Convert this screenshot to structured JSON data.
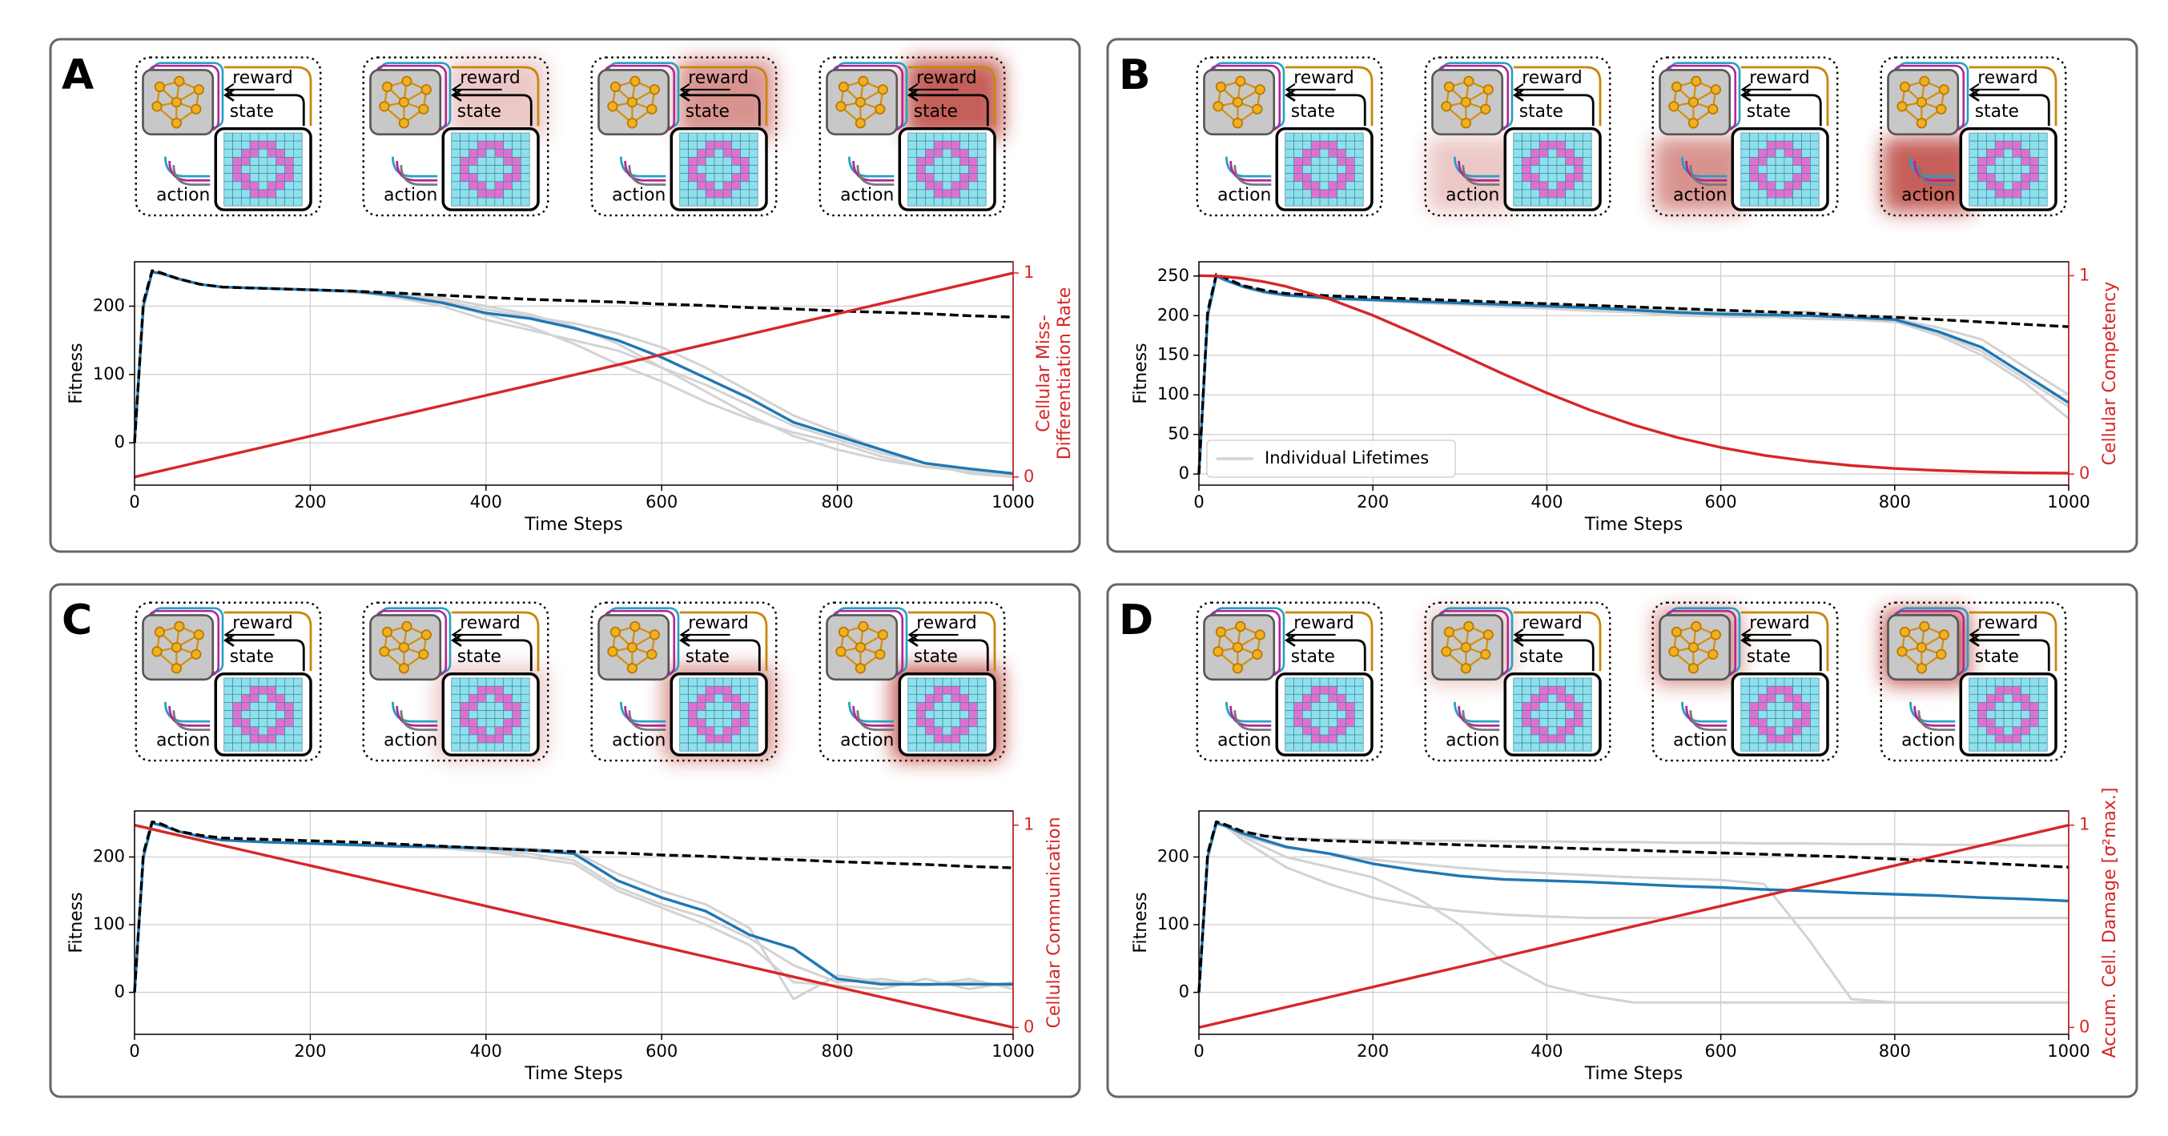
{
  "schematic": {
    "reward": "reward",
    "state": "state",
    "action": "action"
  },
  "chart_data": [
    {
      "type": "line",
      "panel": "A",
      "xlabel": "Time Steps",
      "ylabel": "Fitness",
      "y2label": [
        "Cellular Miss-",
        "Differentiation Rate"
      ],
      "x": [
        0,
        10,
        20,
        30,
        50,
        75,
        100,
        150,
        200,
        250,
        300,
        350,
        400,
        450,
        500,
        550,
        600,
        650,
        700,
        750,
        800,
        850,
        900,
        950,
        1000
      ],
      "xlim": [
        0,
        1000
      ],
      "xticks": [
        0,
        200,
        400,
        600,
        800,
        1000
      ],
      "ylim": [
        -62,
        265
      ],
      "yticks": [
        0,
        100,
        200
      ],
      "y2lim": [
        -0.04,
        1.055
      ],
      "y2ticks": [
        0,
        1
      ],
      "grid": true,
      "series": [
        {
          "color": "#d3d3d3",
          "values": [
            0,
            200,
            250,
            248,
            240,
            232,
            228,
            226,
            224,
            222,
            218,
            212,
            200,
            188,
            170,
            145,
            110,
            75,
            40,
            10,
            -10,
            -25,
            -35,
            -40,
            -45
          ]
        },
        {
          "color": "#d3d3d3",
          "values": [
            0,
            200,
            250,
            248,
            240,
            232,
            228,
            226,
            224,
            222,
            212,
            200,
            180,
            165,
            150,
            135,
            110,
            85,
            55,
            25,
            5,
            -15,
            -30,
            -40,
            -50
          ]
        },
        {
          "color": "#d3d3d3",
          "values": [
            0,
            200,
            250,
            248,
            240,
            232,
            228,
            226,
            224,
            220,
            215,
            208,
            195,
            185,
            175,
            160,
            140,
            110,
            75,
            40,
            15,
            -10,
            -30,
            -45,
            -50
          ]
        },
        {
          "color": "#d3d3d3",
          "values": [
            0,
            200,
            250,
            248,
            240,
            232,
            228,
            226,
            224,
            222,
            216,
            205,
            188,
            170,
            145,
            115,
            90,
            60,
            35,
            15,
            0,
            -20,
            -35,
            -42,
            -48
          ]
        },
        {
          "color": "#1f77b4",
          "values": [
            0,
            200,
            250,
            248,
            240,
            232,
            228,
            226,
            224,
            222,
            215,
            205,
            190,
            182,
            168,
            150,
            125,
            95,
            65,
            30,
            10,
            -10,
            -30,
            -38,
            -45
          ]
        },
        {
          "color": "#000000",
          "linestyle": "dashed",
          "values": [
            0,
            205,
            252,
            249,
            240,
            232,
            228,
            226,
            224,
            222,
            219,
            216,
            213,
            210,
            208,
            206,
            203,
            201,
            198,
            196,
            193,
            191,
            189,
            186,
            184
          ]
        },
        {
          "color": "#d62728",
          "axis": "y2",
          "values": [
            0,
            0.01,
            0.02,
            0.03,
            0.05,
            0.075,
            0.1,
            0.15,
            0.2,
            0.25,
            0.3,
            0.35,
            0.4,
            0.45,
            0.5,
            0.55,
            0.6,
            0.65,
            0.7,
            0.75,
            0.8,
            0.85,
            0.9,
            0.95,
            1
          ]
        }
      ]
    },
    {
      "type": "line",
      "panel": "B",
      "xlabel": "Time Steps",
      "ylabel": "Fitness",
      "y2label": [
        "Cellular Competency"
      ],
      "x": [
        0,
        10,
        20,
        30,
        50,
        75,
        100,
        150,
        200,
        250,
        300,
        350,
        400,
        450,
        500,
        550,
        600,
        650,
        700,
        750,
        800,
        850,
        900,
        950,
        1000
      ],
      "xlim": [
        0,
        1000
      ],
      "xticks": [
        0,
        200,
        400,
        600,
        800,
        1000
      ],
      "ylim": [
        -14,
        268
      ],
      "yticks": [
        0,
        50,
        100,
        150,
        200,
        250
      ],
      "y2lim": [
        -0.056,
        1.07
      ],
      "y2ticks": [
        0,
        1
      ],
      "grid": true,
      "legend": "lower left",
      "series": [
        {
          "name": "Individual Lifetimes",
          "color": "#d3d3d3",
          "values": [
            0,
            200,
            250,
            245,
            236,
            229,
            225,
            221,
            219,
            216,
            214,
            211,
            209,
            206,
            204,
            200,
            199,
            198,
            200,
            197,
            193,
            175,
            150,
            115,
            70
          ]
        },
        {
          "color": "#d3d3d3",
          "values": [
            0,
            200,
            250,
            245,
            238,
            231,
            227,
            223,
            221,
            219,
            217,
            216,
            214,
            211,
            209,
            206,
            204,
            203,
            205,
            200,
            196,
            185,
            170,
            135,
            100
          ]
        },
        {
          "color": "#d3d3d3",
          "values": [
            0,
            200,
            250,
            245,
            237,
            230,
            226,
            222,
            220,
            217,
            215,
            212,
            210,
            208,
            205,
            202,
            200,
            199,
            196,
            195,
            192,
            178,
            155,
            120,
            85
          ]
        },
        {
          "color": "#1f77b4",
          "values": [
            0,
            200,
            250,
            245,
            237,
            230,
            226,
            222,
            220,
            218,
            216,
            214,
            212,
            210,
            207,
            204,
            202,
            201,
            200,
            198,
            195,
            180,
            160,
            125,
            90
          ]
        },
        {
          "color": "#000000",
          "linestyle": "dashed",
          "values": [
            0,
            205,
            252,
            248,
            238,
            232,
            228,
            225,
            223,
            221,
            219,
            217,
            215,
            213,
            211,
            209,
            207,
            205,
            203,
            200,
            198,
            195,
            192,
            189,
            186
          ]
        },
        {
          "color": "#d62728",
          "axis": "y2",
          "values": [
            1,
            0.999,
            0.998,
            0.995,
            0.986,
            0.969,
            0.946,
            0.882,
            0.8,
            0.705,
            0.605,
            0.504,
            0.409,
            0.322,
            0.247,
            0.184,
            0.134,
            0.094,
            0.065,
            0.043,
            0.028,
            0.018,
            0.011,
            0.006,
            0.004
          ]
        }
      ]
    },
    {
      "type": "line",
      "panel": "C",
      "xlabel": "Time Steps",
      "ylabel": "Fitness",
      "y2label": [
        "Cellular Communication"
      ],
      "x": [
        0,
        10,
        20,
        30,
        50,
        75,
        100,
        150,
        200,
        250,
        300,
        350,
        400,
        450,
        500,
        550,
        600,
        650,
        700,
        750,
        800,
        850,
        900,
        950,
        1000
      ],
      "xlim": [
        0,
        1000
      ],
      "xticks": [
        0,
        200,
        400,
        600,
        800,
        1000
      ],
      "ylim": [
        -62,
        268
      ],
      "yticks": [
        0,
        100,
        200
      ],
      "y2lim": [
        -0.034,
        1.07
      ],
      "y2ticks": [
        0,
        1
      ],
      "grid": true,
      "series": [
        {
          "color": "#d3d3d3",
          "values": [
            0,
            200,
            250,
            247,
            238,
            230,
            225,
            222,
            220,
            218,
            216,
            214,
            210,
            205,
            195,
            155,
            130,
            110,
            80,
            40,
            15,
            20,
            10,
            15,
            10
          ]
        },
        {
          "color": "#d3d3d3",
          "values": [
            0,
            200,
            250,
            247,
            238,
            230,
            225,
            222,
            220,
            217,
            215,
            213,
            208,
            200,
            190,
            150,
            125,
            100,
            70,
            15,
            10,
            5,
            20,
            5,
            15
          ]
        },
        {
          "color": "#d3d3d3",
          "values": [
            0,
            200,
            250,
            247,
            238,
            230,
            225,
            222,
            220,
            219,
            217,
            216,
            214,
            212,
            208,
            175,
            150,
            130,
            95,
            -10,
            25,
            15,
            10,
            20,
            5
          ]
        },
        {
          "color": "#1f77b4",
          "values": [
            0,
            200,
            250,
            247,
            238,
            230,
            225,
            222,
            220,
            218,
            216,
            215,
            213,
            210,
            205,
            165,
            140,
            120,
            85,
            65,
            20,
            12,
            12,
            12,
            12
          ]
        },
        {
          "color": "#000000",
          "linestyle": "dashed",
          "values": [
            0,
            205,
            252,
            249,
            238,
            232,
            228,
            226,
            224,
            222,
            219,
            216,
            213,
            210,
            208,
            206,
            203,
            201,
            198,
            196,
            193,
            191,
            189,
            186,
            184
          ]
        },
        {
          "color": "#d62728",
          "axis": "y2",
          "values": [
            1,
            0.99,
            0.98,
            0.97,
            0.95,
            0.925,
            0.9,
            0.85,
            0.8,
            0.75,
            0.7,
            0.65,
            0.6,
            0.55,
            0.5,
            0.45,
            0.4,
            0.35,
            0.3,
            0.25,
            0.2,
            0.15,
            0.1,
            0.05,
            0
          ]
        }
      ]
    },
    {
      "type": "line",
      "panel": "D",
      "xlabel": "Time Steps",
      "ylabel": "Fitness",
      "y2label": [
        "Accum. Cell. Damage [σ²max.]"
      ],
      "x": [
        0,
        10,
        20,
        30,
        50,
        75,
        100,
        150,
        200,
        250,
        300,
        350,
        400,
        450,
        500,
        550,
        600,
        650,
        700,
        750,
        800,
        850,
        900,
        950,
        1000
      ],
      "xlim": [
        0,
        1000
      ],
      "xticks": [
        0,
        200,
        400,
        600,
        800,
        1000
      ],
      "ylim": [
        -62,
        268
      ],
      "yticks": [
        0,
        100,
        200
      ],
      "y2lim": [
        -0.034,
        1.07
      ],
      "y2ticks": [
        0,
        1
      ],
      "grid": true,
      "series": [
        {
          "color": "#d3d3d3",
          "values": [
            0,
            200,
            250,
            246,
            238,
            232,
            228,
            226,
            225,
            224,
            224,
            223,
            223,
            222,
            222,
            221,
            221,
            220,
            220,
            219,
            219,
            218,
            218,
            217,
            217
          ]
        },
        {
          "color": "#d3d3d3",
          "values": [
            0,
            200,
            250,
            246,
            230,
            215,
            200,
            185,
            170,
            140,
            100,
            45,
            10,
            -5,
            -15,
            -15,
            -15,
            -15,
            -15,
            -15,
            -15,
            -15,
            -15,
            -15,
            -15
          ]
        },
        {
          "color": "#d3d3d3",
          "values": [
            0,
            200,
            250,
            246,
            232,
            222,
            214,
            205,
            196,
            190,
            184,
            179,
            176,
            173,
            170,
            168,
            166,
            160,
            80,
            -10,
            -15,
            -15,
            -15,
            -15,
            -15
          ]
        },
        {
          "color": "#d3d3d3",
          "values": [
            0,
            200,
            250,
            246,
            225,
            205,
            185,
            160,
            140,
            128,
            120,
            115,
            112,
            110,
            110,
            110,
            110,
            110,
            110,
            110,
            110,
            110,
            110,
            110,
            110
          ]
        },
        {
          "color": "#1f77b4",
          "values": [
            0,
            200,
            250,
            246,
            235,
            225,
            215,
            205,
            190,
            180,
            172,
            167,
            165,
            163,
            160,
            157,
            155,
            152,
            150,
            147,
            145,
            143,
            140,
            138,
            135
          ]
        },
        {
          "color": "#000000",
          "linestyle": "dashed",
          "values": [
            0,
            205,
            252,
            248,
            238,
            231,
            227,
            224,
            222,
            220,
            218,
            216,
            214,
            212,
            210,
            208,
            206,
            204,
            202,
            200,
            197,
            194,
            191,
            188,
            185
          ]
        },
        {
          "color": "#d62728",
          "axis": "y2",
          "values": [
            0,
            0.01,
            0.02,
            0.03,
            0.05,
            0.075,
            0.1,
            0.15,
            0.2,
            0.25,
            0.3,
            0.35,
            0.4,
            0.45,
            0.5,
            0.55,
            0.6,
            0.65,
            0.7,
            0.75,
            0.8,
            0.85,
            0.9,
            0.95,
            1
          ]
        }
      ]
    }
  ]
}
